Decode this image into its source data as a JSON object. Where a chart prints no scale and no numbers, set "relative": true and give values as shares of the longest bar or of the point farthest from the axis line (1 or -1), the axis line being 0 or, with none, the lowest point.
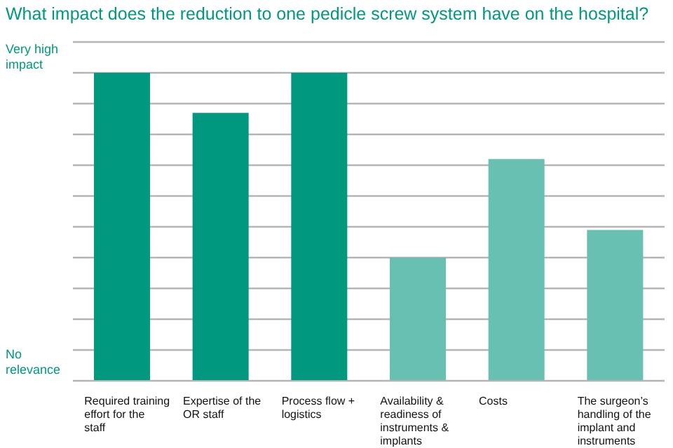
{
  "chart_data": {
    "type": "bar",
    "title": "What impact does the reduction to one pedicle screw system have on the hospital?",
    "categories": [
      "Required training effort for the staff",
      "Expertise of the OR staff",
      "Process flow + logistics",
      "Availability & readiness of instruments & implants",
      "Costs",
      "The surgeon’s handling of the implant and instruments"
    ],
    "values": [
      1,
      0.87,
      1,
      0.4,
      0.72,
      0.49
    ],
    "colors": [
      "#00987e",
      "#00987e",
      "#00987e",
      "#67c0b1",
      "#67c0b1",
      "#67c0b1"
    ],
    "relative": true,
    "annotations": [
      "Very high impact",
      "No relevance"
    ],
    "grid": "y"
  }
}
